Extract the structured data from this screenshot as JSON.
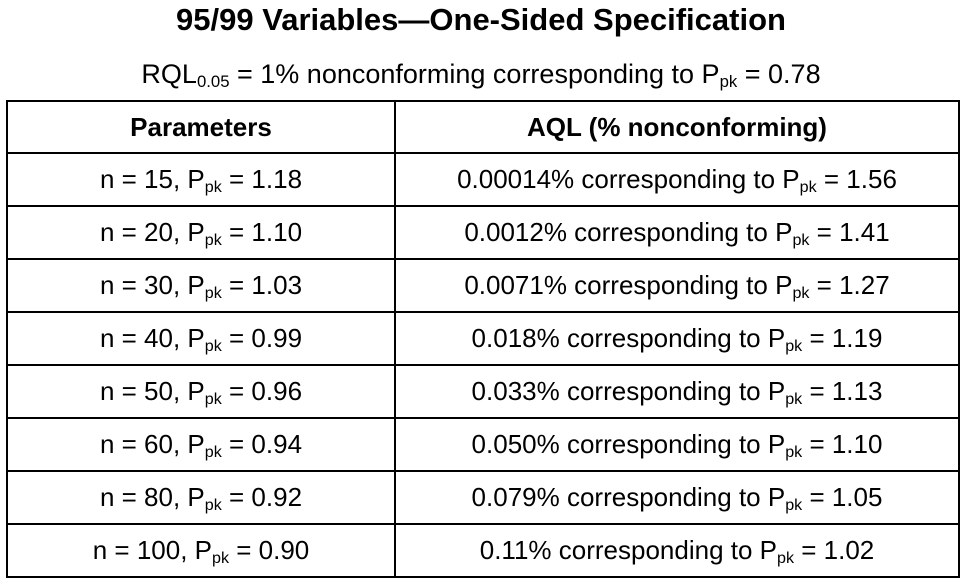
{
  "title": "95/99 Variables—One-Sided Specification",
  "subtitle": {
    "prefix": "RQL",
    "sub": "0.05",
    "middle": " = 1% nonconforming corresponding to P",
    "ppk_sub": "pk",
    "suffix": " = 0.78"
  },
  "table": {
    "headers": [
      "Parameters",
      "AQL (% nonconforming)"
    ],
    "rows": [
      {
        "n_prefix": "n = 15, P",
        "n_sub": "pk",
        "n_suffix": " = 1.18",
        "aql_prefix": "0.00014% corresponding to P",
        "aql_sub": "pk",
        "aql_suffix": " = 1.56"
      },
      {
        "n_prefix": "n = 20, P",
        "n_sub": "pk",
        "n_suffix": " = 1.10",
        "aql_prefix": "0.0012% corresponding to P",
        "aql_sub": "pk",
        "aql_suffix": " = 1.41"
      },
      {
        "n_prefix": "n = 30, P",
        "n_sub": "pk",
        "n_suffix": " = 1.03",
        "aql_prefix": "0.0071% corresponding to P",
        "aql_sub": "pk",
        "aql_suffix": " = 1.27"
      },
      {
        "n_prefix": "n = 40, P",
        "n_sub": "pk",
        "n_suffix": " = 0.99",
        "aql_prefix": "0.018% corresponding to P",
        "aql_sub": "pk",
        "aql_suffix": " = 1.19"
      },
      {
        "n_prefix": "n = 50, P",
        "n_sub": "pk",
        "n_suffix": " = 0.96",
        "aql_prefix": "0.033% corresponding to P",
        "aql_sub": "pk",
        "aql_suffix": " = 1.13"
      },
      {
        "n_prefix": "n = 60, P",
        "n_sub": "pk",
        "n_suffix": " = 0.94",
        "aql_prefix": "0.050% corresponding to P",
        "aql_sub": "pk",
        "aql_suffix": " = 1.10"
      },
      {
        "n_prefix": "n = 80, P",
        "n_sub": "pk",
        "n_suffix": " = 0.92",
        "aql_prefix": "0.079% corresponding to P",
        "aql_sub": "pk",
        "aql_suffix": " = 1.05"
      },
      {
        "n_prefix": "n = 100, P",
        "n_sub": "pk",
        "n_suffix": " = 0.90",
        "aql_prefix": "0.11% corresponding to P",
        "aql_sub": "pk",
        "aql_suffix": " = 1.02"
      }
    ]
  }
}
